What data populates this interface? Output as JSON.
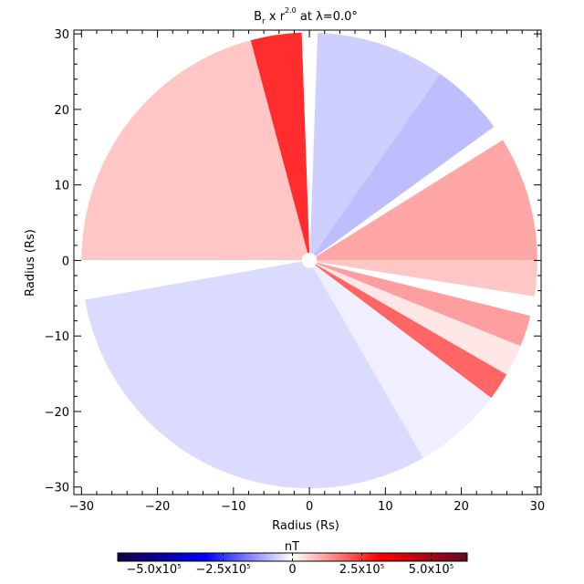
{
  "chart_data": {
    "type": "heatmap",
    "title": {
      "prefix": "B",
      "sub": "r",
      "mid": " x r",
      "sup": "2.0",
      "suffix": " at λ=0.0°"
    },
    "xlabel": "Radius (Rs)",
    "ylabel": "Radius (Rs)",
    "xlim": [
      -31,
      30.5
    ],
    "ylim": [
      -31,
      30.5
    ],
    "x_ticks": [
      -30,
      -20,
      -10,
      0,
      10,
      20,
      30
    ],
    "y_ticks": [
      -30,
      -20,
      -10,
      0,
      10,
      20,
      30
    ],
    "x_tick_labels": [
      "−30",
      "−20",
      "−10",
      "0",
      "10",
      "20",
      "30"
    ],
    "y_tick_labels": [
      "−30",
      "−20",
      "−10",
      "0",
      "10",
      "20",
      "30"
    ],
    "disk_outer_radius": 30,
    "disk_inner_radius": 1,
    "sectors": [
      {
        "angle_start": 0,
        "angle_end": 32,
        "value": 110000.0
      },
      {
        "angle_start": 32,
        "angle_end": 36,
        "value": 0.0
      },
      {
        "angle_start": 36,
        "angle_end": 55,
        "value": -80000.0
      },
      {
        "angle_start": 55,
        "angle_end": 88,
        "value": -60000.0
      },
      {
        "angle_start": 88,
        "angle_end": 92,
        "value": 0.0
      },
      {
        "angle_start": 92,
        "angle_end": 105,
        "value": 260000.0
      },
      {
        "angle_start": 105,
        "angle_end": 180,
        "value": 70000.0
      },
      {
        "angle_start": 180,
        "angle_end": 190,
        "value": 0.0
      },
      {
        "angle_start": 190,
        "angle_end": 300,
        "value": -45000.0
      },
      {
        "angle_start": 300,
        "angle_end": 323,
        "value": -20000.0
      },
      {
        "angle_start": 323,
        "angle_end": 330,
        "value": 190000.0
      },
      {
        "angle_start": 330,
        "angle_end": 338,
        "value": 30000.0
      },
      {
        "angle_start": 338,
        "angle_end": 346,
        "value": 120000.0
      },
      {
        "angle_start": 346,
        "angle_end": 351,
        "value": 0.0
      },
      {
        "angle_start": 351,
        "angle_end": 360,
        "value": 70000.0
      }
    ],
    "colorbar": {
      "title": "nT",
      "vmin": -630000.0,
      "vmax": 630000.0,
      "ticks": [
        {
          "value": -500000.0,
          "mant": "−5.0x10",
          "exp": "5"
        },
        {
          "value": -250000.0,
          "mant": "−2.5x10",
          "exp": "5"
        },
        {
          "value": 0,
          "mant": "0",
          "exp": ""
        },
        {
          "value": 250000.0,
          "mant": "2.5x10",
          "exp": "5"
        },
        {
          "value": 500000.0,
          "mant": "5.0x10",
          "exp": "5"
        }
      ],
      "colors": {
        "min": "#140046",
        "neg_mid": "#0000ff",
        "zero": "#ffffff",
        "pos_mid": "#ff0000",
        "max": "#640a28"
      }
    }
  }
}
